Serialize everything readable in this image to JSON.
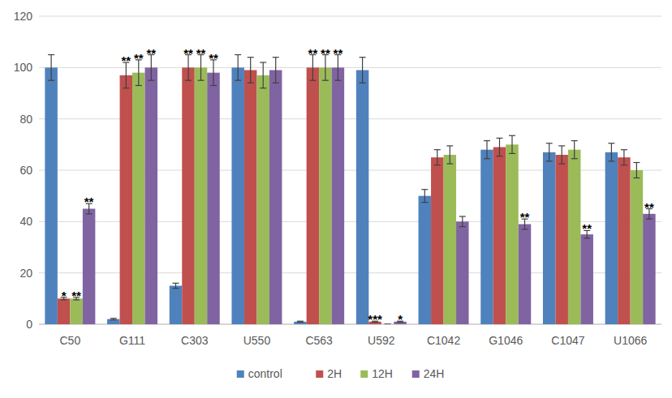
{
  "chart_data": {
    "type": "bar",
    "categories": [
      "C50",
      "G111",
      "C303",
      "U550",
      "C563",
      "U592",
      "C1042",
      "G1046",
      "C1047",
      "U1066"
    ],
    "series": [
      {
        "name": "control",
        "color": "#4f81bd",
        "values": [
          100,
          2,
          15,
          100,
          1,
          99,
          50,
          68,
          67,
          67
        ],
        "errors": [
          5,
          0.3,
          1,
          5,
          0.2,
          5,
          2.5,
          3.5,
          3.5,
          3.5
        ],
        "annotations": [
          null,
          null,
          null,
          null,
          null,
          null,
          null,
          null,
          null,
          null
        ]
      },
      {
        "name": "2H",
        "color": "#c0504d",
        "values": [
          10,
          97,
          100,
          99,
          100,
          1,
          65,
          69,
          66,
          65
        ],
        "errors": [
          0.5,
          5,
          5,
          5,
          5,
          0.2,
          3,
          3.5,
          3.5,
          3
        ],
        "annotations": [
          "*",
          "**",
          "**",
          null,
          "**",
          "***",
          null,
          null,
          null,
          null
        ]
      },
      {
        "name": "12H",
        "color": "#9bbb59",
        "values": [
          10,
          98,
          100,
          97,
          100,
          0,
          66,
          70,
          68,
          60
        ],
        "errors": [
          0.5,
          5,
          5,
          5,
          5,
          0,
          3.5,
          3.5,
          3.5,
          3
        ],
        "annotations": [
          "**",
          "**",
          "**",
          null,
          "**",
          null,
          null,
          null,
          null,
          null
        ]
      },
      {
        "name": "24H",
        "color": "#8064a2",
        "values": [
          45,
          100,
          98,
          99,
          100,
          1,
          40,
          39,
          35,
          43
        ],
        "errors": [
          2,
          5,
          5,
          5,
          5,
          0.2,
          2,
          2,
          1.5,
          2
        ],
        "annotations": [
          "**",
          "**",
          "**",
          null,
          "**",
          "*",
          null,
          "**",
          "**",
          "**"
        ]
      }
    ],
    "ylim": [
      0,
      120
    ],
    "yticks": [
      0,
      20,
      40,
      60,
      80,
      100,
      120
    ],
    "grid": true,
    "legend": "bottom"
  }
}
